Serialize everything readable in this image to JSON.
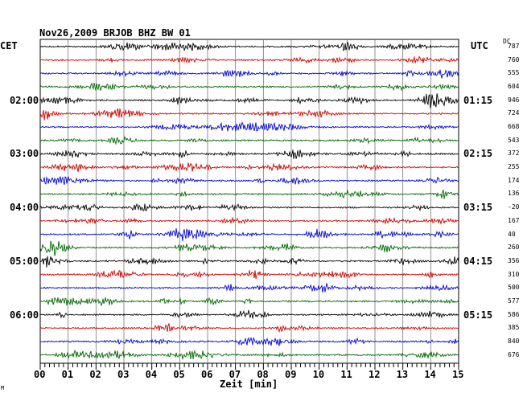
{
  "chart_data": {
    "type": "line",
    "title": "Nov26,2009   BRJOB BHZ BW 01",
    "left_axis_label": "CET",
    "right_axis_label": "UTC",
    "offset_header": "DC",
    "xlabel": "Zeit [min]",
    "xlim": [
      0,
      15
    ],
    "x_ticks": [
      "00",
      "01",
      "02",
      "03",
      "04",
      "05",
      "06",
      "07",
      "08",
      "09",
      "10",
      "11",
      "12",
      "13",
      "14",
      "15"
    ],
    "trace_colors": [
      "#000000",
      "#cc0000",
      "#0000cc",
      "#006600"
    ],
    "cet_hour_labels": [
      {
        "label": "02:00",
        "trace_index": 4
      },
      {
        "label": "03:00",
        "trace_index": 8
      },
      {
        "label": "04:00",
        "trace_index": 12
      },
      {
        "label": "05:00",
        "trace_index": 16
      },
      {
        "label": "06:00",
        "trace_index": 20
      }
    ],
    "utc_hour_labels": [
      {
        "label": "01:15",
        "trace_index": 4
      },
      {
        "label": "02:15",
        "trace_index": 8
      },
      {
        "label": "03:15",
        "trace_index": 12
      },
      {
        "label": "04:15",
        "trace_index": 16
      },
      {
        "label": "05:15",
        "trace_index": 20
      }
    ],
    "dc_offsets": [
      "787",
      "760",
      "555",
      "604",
      "946",
      "724",
      "668",
      "543",
      "372",
      "255",
      "174",
      "136",
      "-20",
      "167",
      "40",
      "260",
      "356",
      "310",
      "500",
      "577",
      "586",
      "385",
      "840",
      "676"
    ],
    "grid": true
  },
  "footnote": "M"
}
